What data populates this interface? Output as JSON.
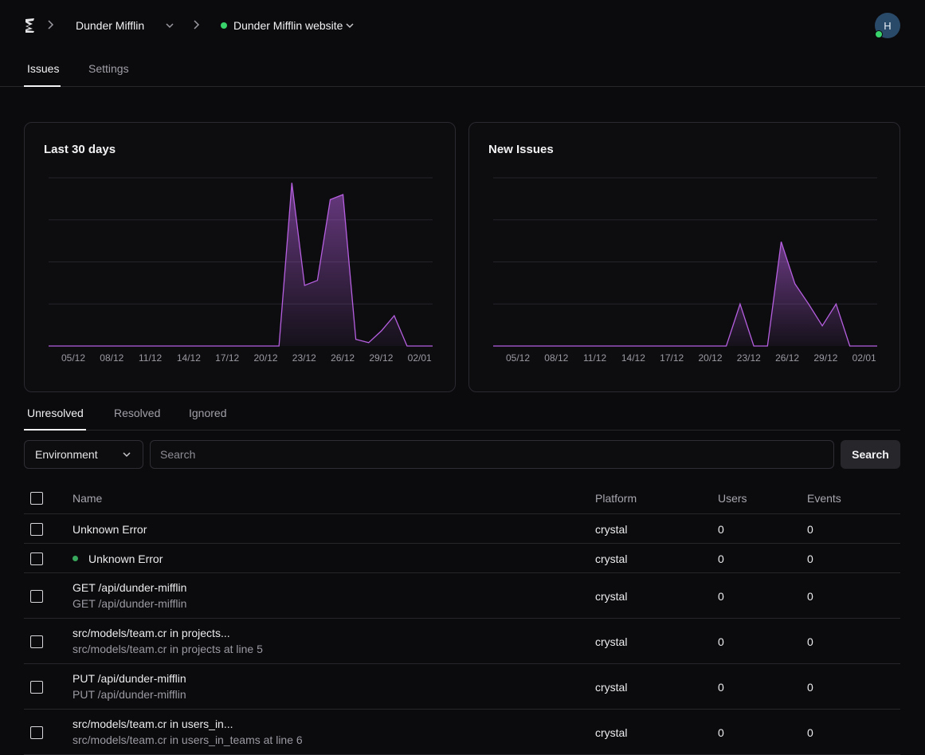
{
  "header": {
    "org_name": "Dunder Mifflin",
    "project_name": "Dunder Mifflin website",
    "project_status_color": "#38d36b",
    "avatar_initial": "H"
  },
  "main_tabs": [
    {
      "label": "Issues",
      "active": true
    },
    {
      "label": "Settings",
      "active": false
    }
  ],
  "cards": [
    {
      "title": "Last 30 days"
    },
    {
      "title": "New Issues"
    }
  ],
  "chart_data": [
    {
      "type": "area",
      "title": "Last 30 days",
      "x_ticks": [
        "05/12",
        "08/12",
        "11/12",
        "14/12",
        "17/12",
        "20/12",
        "23/12",
        "26/12",
        "29/12",
        "02/01"
      ],
      "color": "#b65fe0",
      "grid": true,
      "ylim": [
        0,
        1
      ],
      "values": [
        0,
        0,
        0,
        0,
        0,
        0,
        0,
        0,
        0,
        0,
        0,
        0,
        0,
        0,
        0,
        0,
        0,
        0,
        0,
        0.97,
        0.36,
        0.39,
        0.87,
        0.9,
        0.04,
        0.02,
        0.09,
        0.18,
        0,
        0,
        0
      ]
    },
    {
      "type": "area",
      "title": "New Issues",
      "x_ticks": [
        "05/12",
        "08/12",
        "11/12",
        "14/12",
        "17/12",
        "20/12",
        "23/12",
        "26/12",
        "29/12",
        "02/01"
      ],
      "color": "#b65fe0",
      "grid": true,
      "ylim": [
        0,
        1
      ],
      "values": [
        0,
        0,
        0,
        0,
        0,
        0,
        0,
        0,
        0,
        0,
        0,
        0,
        0,
        0,
        0,
        0,
        0,
        0,
        0.25,
        0,
        0,
        0.62,
        0.37,
        0.25,
        0.12,
        0.25,
        0,
        0,
        0
      ]
    }
  ],
  "sub_tabs": [
    {
      "label": "Unresolved",
      "active": true
    },
    {
      "label": "Resolved",
      "active": false
    },
    {
      "label": "Ignored",
      "active": false
    }
  ],
  "filters": {
    "environment_label": "Environment",
    "search_placeholder": "Search",
    "search_button": "Search"
  },
  "table": {
    "columns": [
      "Name",
      "Platform",
      "Users",
      "Events"
    ],
    "rows": [
      {
        "name": "Unknown Error",
        "subtitle": "",
        "platform": "crystal",
        "users": "0",
        "events": "0",
        "dot": false
      },
      {
        "name": "Unknown Error",
        "subtitle": "",
        "platform": "crystal",
        "users": "0",
        "events": "0",
        "dot": true
      },
      {
        "name": "GET /api/dunder-mifflin",
        "subtitle": "GET /api/dunder-mifflin",
        "platform": "crystal",
        "users": "0",
        "events": "0",
        "dot": false
      },
      {
        "name": "src/models/team.cr in projects...",
        "subtitle": "src/models/team.cr in projects at line 5",
        "platform": "crystal",
        "users": "0",
        "events": "0",
        "dot": false
      },
      {
        "name": "PUT /api/dunder-mifflin",
        "subtitle": "PUT /api/dunder-mifflin",
        "platform": "crystal",
        "users": "0",
        "events": "0",
        "dot": false
      },
      {
        "name": "src/models/team.cr in users_in...",
        "subtitle": "src/models/team.cr in users_in_teams at line 6",
        "platform": "crystal",
        "users": "0",
        "events": "0",
        "dot": false
      }
    ]
  }
}
